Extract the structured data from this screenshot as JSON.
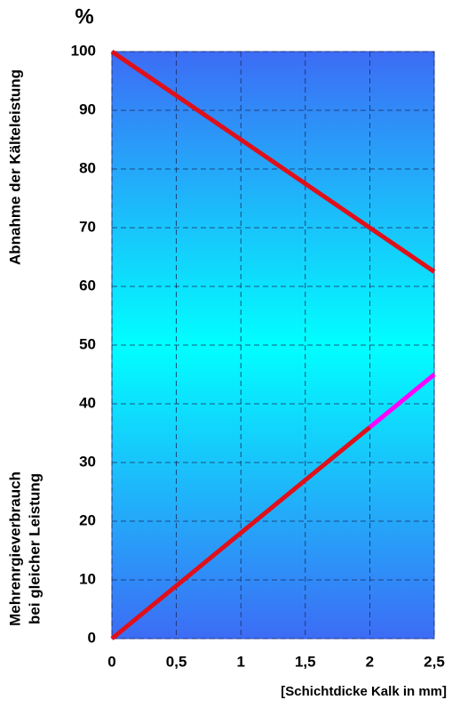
{
  "chart_data": {
    "type": "line",
    "unit_label": "%",
    "ylabel_top": "Abnahme der Kälteleistung",
    "ylabel_bottom": [
      "Mehrenrgieverbrauch",
      "bei gleicher Leistung"
    ],
    "xlabel": "[Schichtdicke Kalk in mm]",
    "xlim": [
      0,
      2.5
    ],
    "xticks": [
      0,
      {
        "value": 0.5,
        "label": "0,5"
      },
      1,
      {
        "value": 1.5,
        "label": "1,5"
      },
      2,
      {
        "value": 2.5,
        "label": "2,5"
      }
    ],
    "ylim": [
      0,
      100
    ],
    "yticks": [
      0,
      10,
      20,
      30,
      40,
      50,
      60,
      70,
      80,
      90,
      100
    ],
    "grid": true,
    "series": [
      {
        "color": "#e0101a",
        "x": [
          0,
          2.5
        ],
        "values": [
          100,
          62.5
        ]
      },
      {
        "color": "#e0101a",
        "x": [
          0,
          2
        ],
        "values": [
          0,
          36
        ]
      },
      {
        "color": "#ff00ff",
        "x": [
          2,
          2.5
        ],
        "values": [
          36,
          45
        ]
      }
    ]
  }
}
